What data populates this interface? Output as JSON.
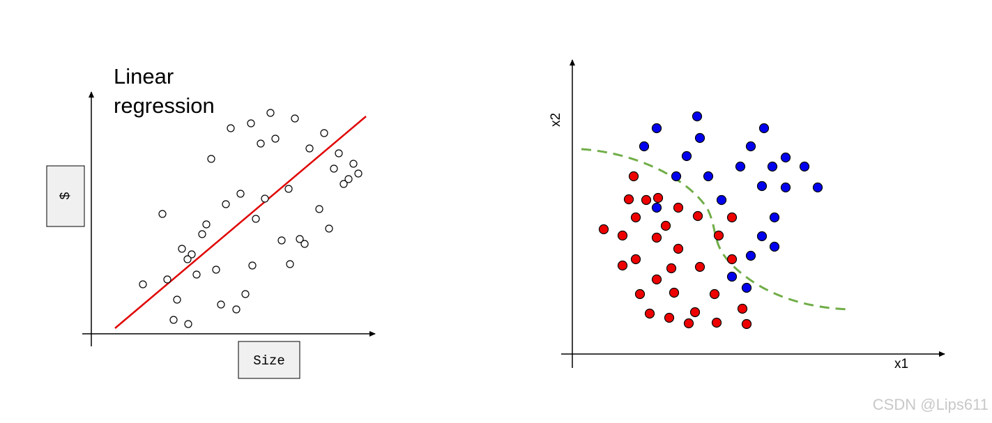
{
  "left_panel": {
    "title_lines": [
      "Linear",
      "regression"
    ],
    "y_label": "$",
    "x_label": "Size"
  },
  "right_panel": {
    "y_label": "x2",
    "x_label": "x1"
  },
  "watermark": "CSDN @Lips611"
}
